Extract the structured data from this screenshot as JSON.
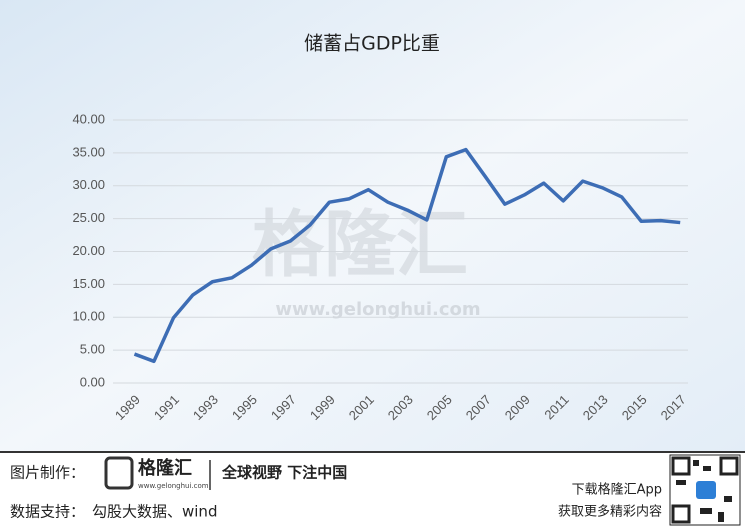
{
  "chart_data": {
    "type": "line",
    "title": "储蓄占GDP比重",
    "x": [
      1989,
      1990,
      1991,
      1992,
      1993,
      1994,
      1995,
      1996,
      1997,
      1998,
      1999,
      2000,
      2001,
      2002,
      2003,
      2004,
      2005,
      2006,
      2007,
      2008,
      2009,
      2010,
      2011,
      2012,
      2013,
      2014,
      2015,
      2016,
      2017
    ],
    "series": [
      {
        "name": "储蓄占GDP比重",
        "color": "#3d6db5",
        "values": [
          4.4,
          3.3,
          9.9,
          13.4,
          15.4,
          16.0,
          17.9,
          20.4,
          21.6,
          24.0,
          27.5,
          28.0,
          29.4,
          27.5,
          26.3,
          24.8,
          34.4,
          35.5,
          31.4,
          27.2,
          28.6,
          30.4,
          27.7,
          30.7,
          29.7,
          28.3,
          24.6,
          24.7,
          24.4
        ]
      }
    ],
    "xlim": [
      1987.9,
      2017.4
    ],
    "xticks": [
      1989,
      1991,
      1993,
      1995,
      1997,
      1999,
      2001,
      2003,
      2005,
      2007,
      2009,
      2011,
      2013,
      2015,
      2017
    ],
    "ylim": [
      0,
      40
    ],
    "yticks": [
      {
        "value": 0,
        "label": "0.00"
      },
      {
        "value": 5,
        "label": "5.00"
      },
      {
        "value": 10,
        "label": "10.00"
      },
      {
        "value": 15,
        "label": "15.00"
      },
      {
        "value": 20,
        "label": "20.00"
      },
      {
        "value": 25,
        "label": "25.00"
      },
      {
        "value": 30,
        "label": "30.00"
      },
      {
        "value": 35,
        "label": "35.00"
      },
      {
        "value": 40,
        "label": "40.00"
      }
    ],
    "grid": true
  },
  "watermark": {
    "name": "格隆汇",
    "url": "www.gelonghui.com"
  },
  "footer": {
    "made_by_label": "图片制作：",
    "logo_name": "格隆汇",
    "logo_url": "www.gelonghui.com",
    "slogan": "全球视野 下注中国",
    "data_label": "数据支持：",
    "data_source": "勾股大数据、wind",
    "app_line1": "下载格隆汇App",
    "app_line2": "获取更多精彩内容"
  }
}
